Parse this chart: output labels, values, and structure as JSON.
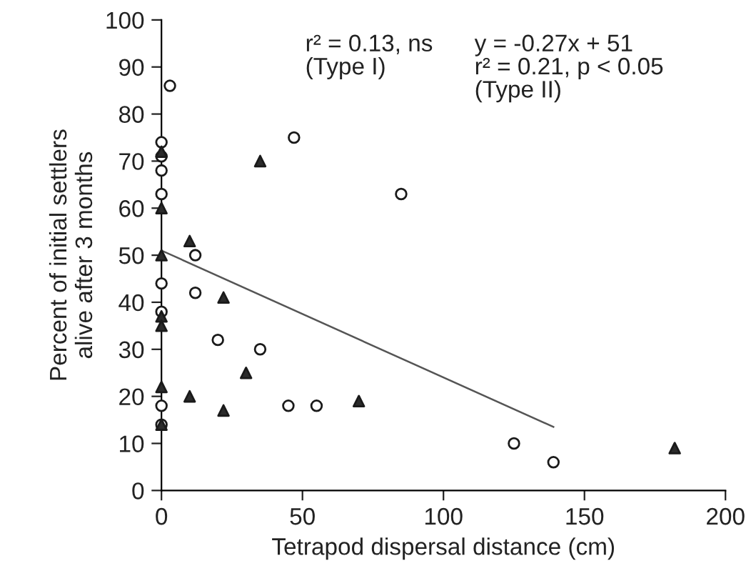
{
  "chart_data": {
    "type": "scatter",
    "xlabel": "Tetrapod dispersal distance (cm)",
    "ylabel": "Percent of initial settlers\nalive after 3 months",
    "xlim": [
      0,
      200
    ],
    "xticks": [
      0,
      50,
      100,
      150,
      200
    ],
    "ylim": [
      0,
      100
    ],
    "yticks": [
      0,
      10,
      20,
      30,
      40,
      50,
      60,
      70,
      80,
      90,
      100
    ],
    "grid": false,
    "legend": false,
    "annotations": [
      "r² = 0.13, ns\n(Type I)",
      "y = -0.27x + 51\nr² = 0.21, p < 0.05\n(Type II)"
    ],
    "series": [
      {
        "marker": "circle",
        "color": "#ffffff",
        "x": [
          3,
          0,
          0,
          0,
          0,
          0,
          0,
          0,
          0,
          12,
          12,
          20,
          35,
          47,
          45,
          55,
          85,
          125,
          139
        ],
        "values": [
          86,
          74,
          71,
          68,
          63,
          44,
          38,
          18,
          14,
          50,
          42,
          32,
          30,
          75,
          18,
          18,
          63,
          10,
          6
        ]
      },
      {
        "marker": "triangle",
        "color": "#2b2b2b",
        "x": [
          0,
          0,
          0,
          0,
          0,
          0,
          0,
          10,
          10,
          22,
          22,
          30,
          35,
          70,
          182
        ],
        "values": [
          72,
          60,
          50,
          37,
          35,
          22,
          14,
          53,
          20,
          41,
          17,
          25,
          70,
          19,
          9
        ]
      },
      {
        "type": "line",
        "marker": "none",
        "color": "#555555",
        "x": [
          0,
          139
        ],
        "values": [
          51,
          13.5
        ]
      }
    ]
  }
}
